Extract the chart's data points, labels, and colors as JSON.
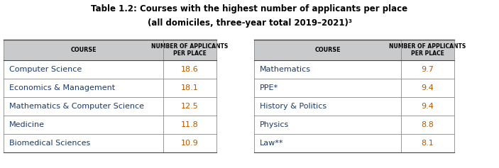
{
  "title_line1": "Table 1.2: Courses with the highest number of applicants per place",
  "title_line2": "(all domiciles, three-year total 2019–2021)³",
  "header_course": "COURSE",
  "header_number": "NUMBER OF APPLICANTS\nPER PLACE",
  "left_courses": [
    "Computer Science",
    "Economics & Management",
    "Mathematics & Computer Science",
    "Medicine",
    "Biomedical Sciences"
  ],
  "left_values": [
    "18.6",
    "18.1",
    "12.5",
    "11.8",
    "10.9"
  ],
  "right_courses": [
    "Mathematics",
    "PPE*",
    "History & Politics",
    "Physics",
    "Law**"
  ],
  "right_values": [
    "9.7",
    "9.4",
    "9.4",
    "8.8",
    "8.1"
  ],
  "header_bg": "#c8cacb",
  "title_color": "#000000",
  "course_color": "#1a3a6b",
  "value_color": "#b05a00",
  "header_text_color": "#000000",
  "bg_color": "#ffffff",
  "line_color": "#888888",
  "title_fontsize": 8.5,
  "header_fontsize": 5.8,
  "row_fontsize": 8.0
}
